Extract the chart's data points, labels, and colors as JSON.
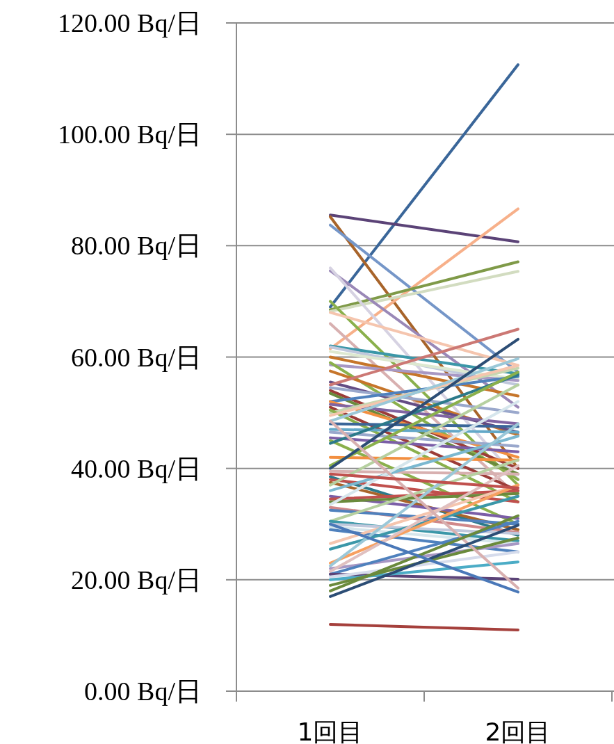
{
  "chart_data": {
    "type": "line",
    "categories": [
      "1回目",
      "2回目"
    ],
    "ylim": [
      0,
      120
    ],
    "yticks": [
      {
        "value": 0,
        "label": "0.00 Bq/日"
      },
      {
        "value": 20,
        "label": "20.00 Bq/日"
      },
      {
        "value": 40,
        "label": "40.00 Bq/日"
      },
      {
        "value": 60,
        "label": "60.00 Bq/日"
      },
      {
        "value": 80,
        "label": "80.00 Bq/日"
      },
      {
        "value": 100,
        "label": "100.00 Bq/日"
      },
      {
        "value": 120,
        "label": "120.00 Bq/日"
      }
    ],
    "grid": "y",
    "series": [
      {
        "color": "#3a6699",
        "values": [
          69,
          112.5
        ]
      },
      {
        "color": "#5b4377",
        "values": [
          85.5,
          80.7
        ]
      },
      {
        "color": "#a8642a",
        "values": [
          85.2,
          40
        ]
      },
      {
        "color": "#7596c8",
        "values": [
          83.7,
          57.3
        ]
      },
      {
        "color": "#f7b08a",
        "values": [
          61.5,
          86.6
        ]
      },
      {
        "color": "#7f9a48",
        "values": [
          68.5,
          77.1
        ]
      },
      {
        "color": "#d2dcc0",
        "values": [
          68.2,
          75.4
        ]
      },
      {
        "color": "#9a88b7",
        "values": [
          75.5,
          51
        ]
      },
      {
        "color": "#d6d2e2",
        "values": [
          76,
          38
        ]
      },
      {
        "color": "#8ab04c",
        "values": [
          70,
          37
        ]
      },
      {
        "color": "#f5c5ae",
        "values": [
          68,
          58.5
        ]
      },
      {
        "color": "#d8b0b0",
        "values": [
          66,
          35
        ]
      },
      {
        "color": "#3b97a8",
        "values": [
          62,
          57
        ]
      },
      {
        "color": "#c0c8dc",
        "values": [
          61.8,
          55
        ]
      },
      {
        "color": "#dde8d0",
        "values": [
          61,
          56
        ]
      },
      {
        "color": "#c6752a",
        "values": [
          60,
          53
        ]
      },
      {
        "color": "#a898c4",
        "values": [
          58.6,
          55.8
        ]
      },
      {
        "color": "#8ab04c",
        "values": [
          59,
          38
        ]
      },
      {
        "color": "#c6752a",
        "values": [
          57.5,
          46
        ]
      },
      {
        "color": "#644c84",
        "values": [
          55.5,
          46.5
        ]
      },
      {
        "color": "#cc7874",
        "values": [
          55,
          65
        ]
      },
      {
        "color": "#9aa8cc",
        "values": [
          54.5,
          50
        ]
      },
      {
        "color": "#9c3c38",
        "values": [
          54,
          40
        ]
      },
      {
        "color": "#6a8a3c",
        "values": [
          53.5,
          39
        ]
      },
      {
        "color": "#4f81bd",
        "values": [
          52,
          56.5
        ]
      },
      {
        "color": "#f28f40",
        "values": [
          52,
          42
        ]
      },
      {
        "color": "#8064a2",
        "values": [
          51.5,
          48
        ]
      },
      {
        "color": "#9c3c38",
        "values": [
          51,
          36
        ]
      },
      {
        "color": "#c6d6b0",
        "values": [
          50,
          58
        ]
      },
      {
        "color": "#8ab04c",
        "values": [
          50.5,
          34
        ]
      },
      {
        "color": "#f5c5ae",
        "values": [
          49.5,
          58.5
        ]
      },
      {
        "color": "#9bc8d8",
        "values": [
          48.5,
          59.7
        ]
      },
      {
        "color": "#3a6699",
        "values": [
          48,
          47.5
        ]
      },
      {
        "color": "#63a8c8",
        "values": [
          47,
          46.5
        ]
      },
      {
        "color": "#9aa8cc",
        "values": [
          46.5,
          44
        ]
      },
      {
        "color": "#7b5ea7",
        "values": [
          45.5,
          43
        ]
      },
      {
        "color": "#8ab04c",
        "values": [
          45,
          30
        ]
      },
      {
        "color": "#2c7a8a",
        "values": [
          44.5,
          56.8
        ]
      },
      {
        "color": "#f28f40",
        "values": [
          42,
          41.5
        ]
      },
      {
        "color": "#8ab04c",
        "values": [
          40.5,
          57.3
        ]
      },
      {
        "color": "#2c4d75",
        "values": [
          40,
          63.2
        ]
      },
      {
        "color": "#d8b0b0",
        "values": [
          39.5,
          39
        ]
      },
      {
        "color": "#2c7a8a",
        "values": [
          38.5,
          28
        ]
      },
      {
        "color": "#c0504d",
        "values": [
          38,
          34
        ]
      },
      {
        "color": "#a8642a",
        "values": [
          37.5,
          29
        ]
      },
      {
        "color": "#b6d0a0",
        "values": [
          37,
          55
        ]
      },
      {
        "color": "#7bb8d0",
        "values": [
          36,
          45.8
        ]
      },
      {
        "color": "#7b5ea7",
        "values": [
          35,
          31
        ]
      },
      {
        "color": "#c0504d",
        "values": [
          34.5,
          36
        ]
      },
      {
        "color": "#6a8a3c",
        "values": [
          34,
          35.5
        ]
      },
      {
        "color": "#d6e6ec",
        "values": [
          33.5,
          52
        ]
      },
      {
        "color": "#d0888a",
        "values": [
          33,
          28.5
        ]
      },
      {
        "color": "#4f81bd",
        "values": [
          32.5,
          30
        ]
      },
      {
        "color": "#b6d0a0",
        "values": [
          30.5,
          41.5
        ]
      },
      {
        "color": "#3b97a8",
        "values": [
          30.5,
          27
        ]
      },
      {
        "color": "#c0c8dc",
        "values": [
          30,
          28.3
        ]
      },
      {
        "color": "#d6e6ec",
        "values": [
          29.5,
          26.5
        ]
      },
      {
        "color": "#4f81bd",
        "values": [
          29,
          25
        ]
      },
      {
        "color": "#f5c5ae",
        "values": [
          26.5,
          37
        ]
      },
      {
        "color": "#3b97a8",
        "values": [
          25.5,
          35
        ]
      },
      {
        "color": "#f7a060",
        "values": [
          23,
          37
        ]
      },
      {
        "color": "#9bc8d8",
        "values": [
          22.5,
          48
        ]
      },
      {
        "color": "#a898c4",
        "values": [
          22,
          26.5
        ]
      },
      {
        "color": "#e0c0c0",
        "values": [
          21.5,
          40.5
        ]
      },
      {
        "color": "#4f81bd",
        "values": [
          21,
          30.5
        ]
      },
      {
        "color": "#5b4377",
        "values": [
          21,
          20.1
        ]
      },
      {
        "color": "#d6dcec",
        "values": [
          20.5,
          25
        ]
      },
      {
        "color": "#4bacc6",
        "values": [
          20,
          23.2
        ]
      },
      {
        "color": "#6a8a3c",
        "values": [
          19,
          27.5
        ]
      },
      {
        "color": "#d8b0b0",
        "values": [
          48.5,
          18.5
        ]
      },
      {
        "color": "#6a8a3c",
        "values": [
          18,
          31.5
        ]
      },
      {
        "color": "#2c4d75",
        "values": [
          17,
          29.8
        ]
      },
      {
        "color": "#a5403c",
        "values": [
          12,
          11
        ]
      },
      {
        "color": "#4a78b8",
        "values": [
          30,
          17.8
        ]
      },
      {
        "color": "#c0504d",
        "values": [
          39,
          36.5
        ]
      }
    ]
  }
}
